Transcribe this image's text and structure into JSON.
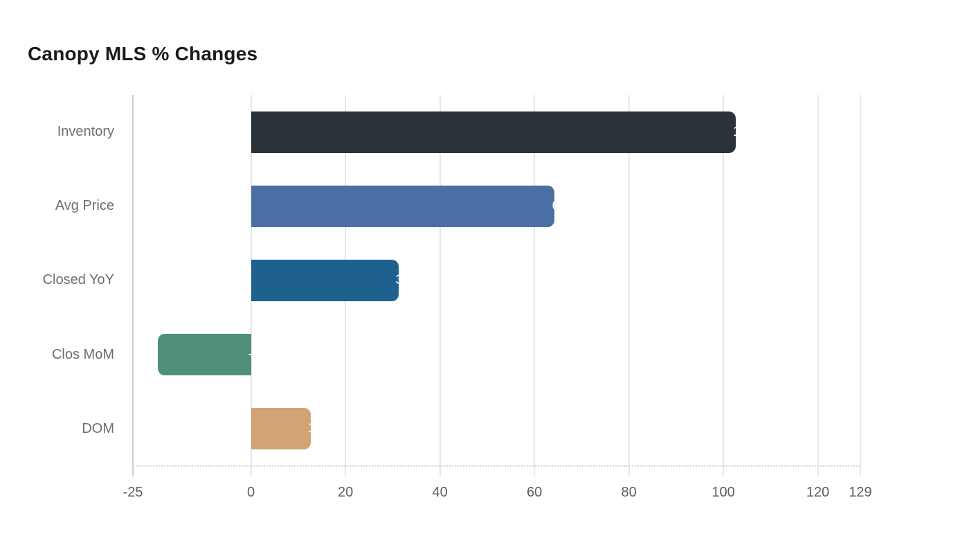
{
  "title": "Canopy MLS % Changes",
  "chart_data": {
    "type": "bar",
    "orientation": "horizontal",
    "title": "Canopy MLS % Changes",
    "categories": [
      "Inventory",
      "Avg Price",
      "Closed YoY",
      "Clos MoM",
      "DOM"
    ],
    "values": [
      102.6,
      64.3,
      31.2,
      -19.7,
      12.6
    ],
    "bar_colors": [
      "#2b3338",
      "#4a6fa5",
      "#1f618e",
      "#4f8f7b",
      "#d3a374"
    ],
    "xlim": [
      -25,
      129
    ],
    "xticks": [
      -25,
      0,
      20,
      40,
      60,
      80,
      100,
      120,
      129
    ],
    "xlabel": "",
    "ylabel": "",
    "grid": "vertical-only",
    "legend": "none",
    "value_labels": "white, positioned at bar end (clipped to a sliver against white background)"
  },
  "colors": {
    "background": "#ffffff",
    "title_text": "#1b1b1b",
    "category_label": "#6e6e6e",
    "tick_label": "#5d5d5d",
    "gridline": "#e7e7e7",
    "axis_line": "#cfcfcf",
    "baseline_dotted": "#d6d6d6",
    "value_label": "#ffffff"
  }
}
